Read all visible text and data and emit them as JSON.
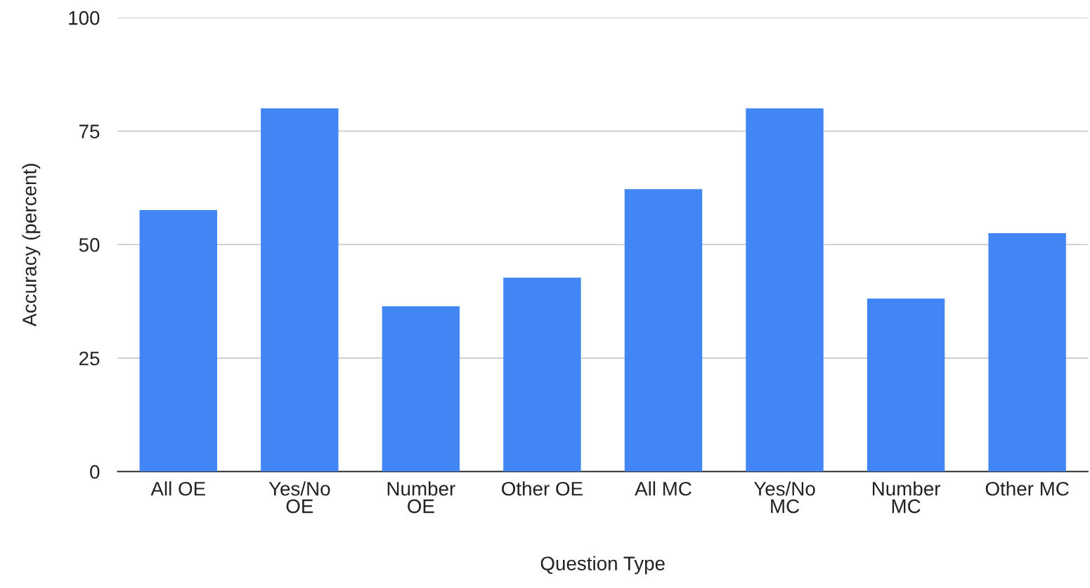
{
  "chart_data": {
    "type": "bar",
    "xlabel": "Question Type",
    "ylabel": "Accuracy (percent)",
    "categories": [
      "All OE",
      "Yes/No\nOE",
      "Number\nOE",
      "Other OE",
      "All MC",
      "Yes/No\nMC",
      "Number\nMC",
      "Other MC"
    ],
    "values": [
      57.6,
      80.0,
      36.4,
      42.7,
      62.2,
      80.0,
      38.1,
      52.5
    ],
    "color": "#4285f4",
    "ylim": [
      0,
      100
    ],
    "yticks": [
      0,
      25,
      50,
      75,
      100
    ],
    "grid": "y"
  }
}
